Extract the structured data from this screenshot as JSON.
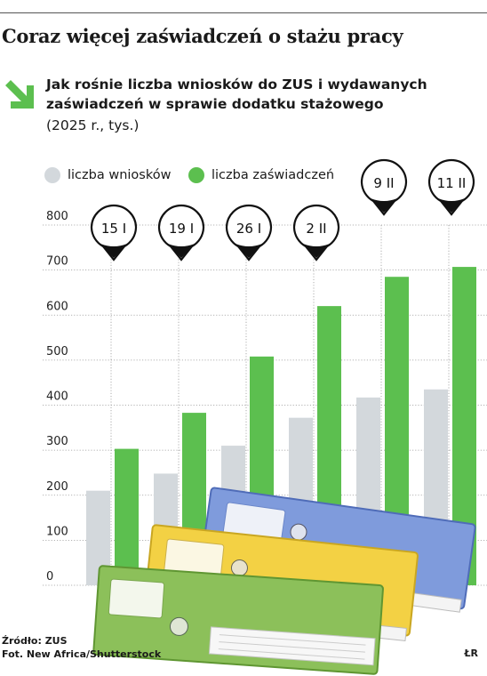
{
  "headline": "Coraz więcej zaświadczeń o stażu pracy",
  "subtitle": "Jak rośnie liczba wniosków do ZUS i wydawanych zaświadczeń w sprawie dodatku stażowego",
  "unit_note": "(2025 r., tys.)",
  "source": "Źródło: ZUS",
  "photo_credit": "Fot. New Africa/Shutterstock",
  "author": "ŁR",
  "colors": {
    "applications": "#d3d8dc",
    "certificates": "#5cbf4f",
    "accent_arrow": "#5cbf4f"
  },
  "icons": [
    "arrow-down-right-icon",
    "date-pin-icon",
    "folders-photo"
  ],
  "chart_data": {
    "type": "bar",
    "title": "Jak rośnie liczba wniosków do ZUS i wydawanych zaświadczeń w sprawie dodatku stażowego",
    "subtitle": "(2025 r., tys.)",
    "categories": [
      "15 I",
      "19 I",
      "26 I",
      "2 II",
      "9 II",
      "11 II"
    ],
    "series": [
      {
        "name": "liczba wniosków",
        "values": [
          210,
          248,
          310,
          372,
          417,
          435
        ]
      },
      {
        "name": "liczba zaświadczeń",
        "values": [
          303,
          383,
          508,
          620,
          685,
          707
        ]
      }
    ],
    "y_ticks": [
      0,
      100,
      200,
      300,
      400,
      500,
      600,
      700,
      800
    ],
    "ylim": [
      0,
      800
    ],
    "grid": true,
    "legend_position": "top-left"
  }
}
